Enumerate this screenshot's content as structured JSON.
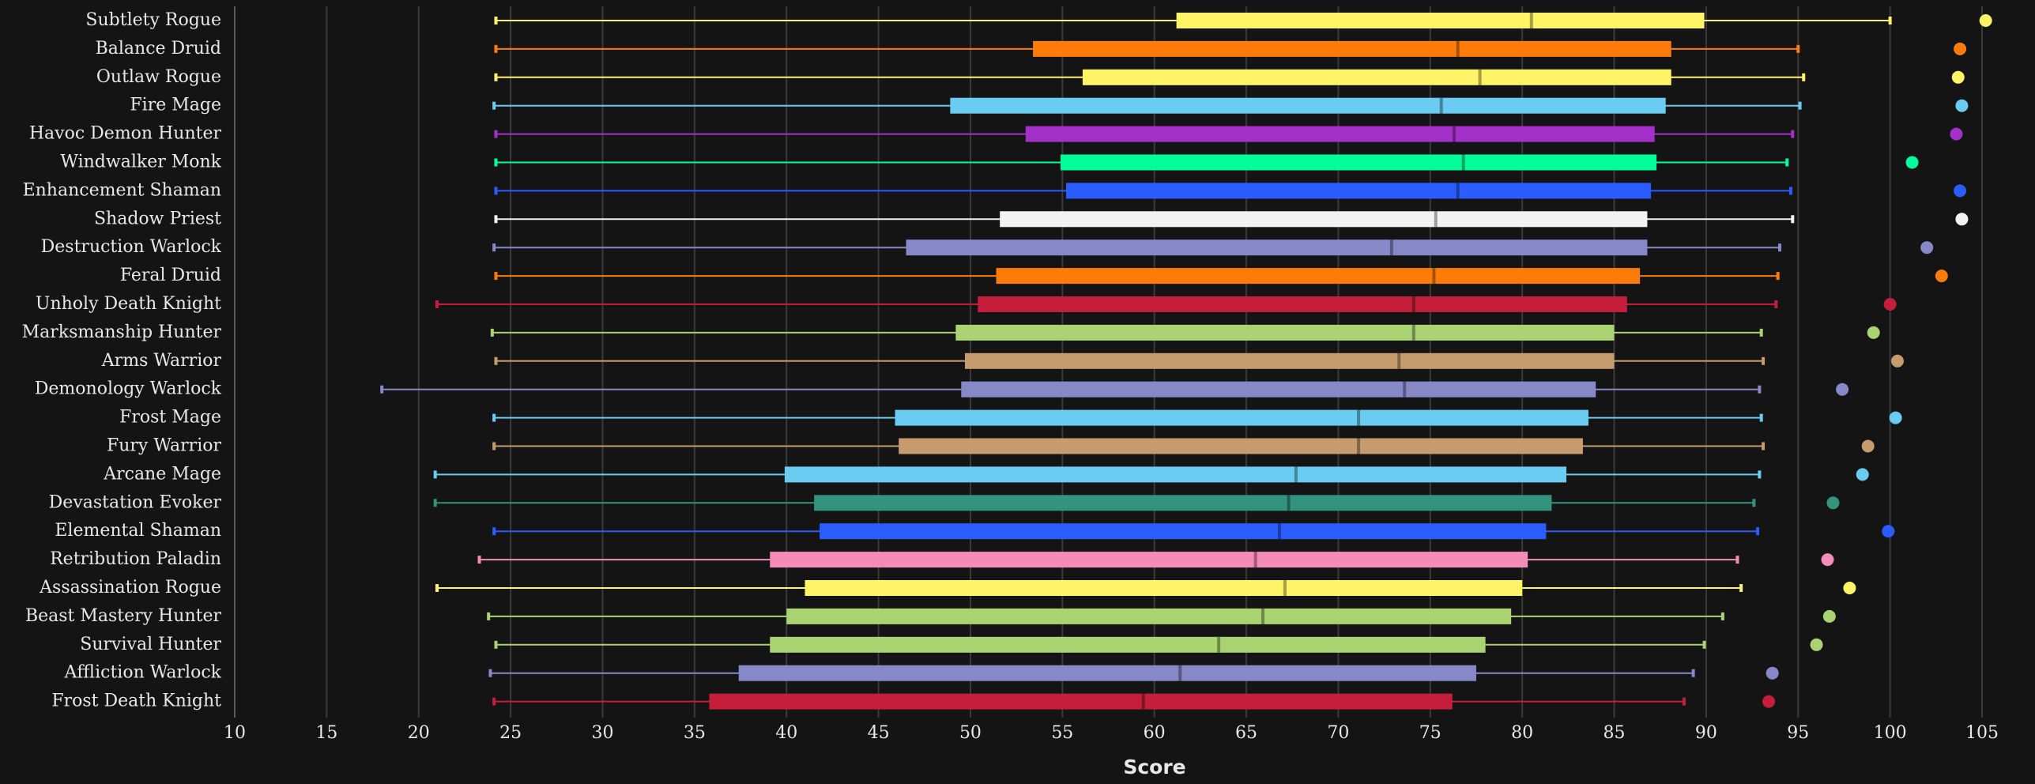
{
  "chart_data": {
    "type": "box",
    "x_label": "Score",
    "xlim": [
      10,
      105
    ],
    "xticks": [
      10,
      15,
      20,
      25,
      30,
      35,
      40,
      45,
      50,
      55,
      60,
      65,
      70,
      75,
      80,
      85,
      90,
      95,
      100,
      105
    ],
    "grid": true,
    "categories": [
      "Subtlety Rogue",
      "Balance Druid",
      "Outlaw Rogue",
      "Fire Mage",
      "Havoc Demon Hunter",
      "Windwalker Monk",
      "Enhancement Shaman",
      "Shadow Priest",
      "Destruction Warlock",
      "Feral Druid",
      "Unholy Death Knight",
      "Marksmanship Hunter",
      "Arms Warrior",
      "Demonology Warlock",
      "Frost Mage",
      "Fury Warrior",
      "Arcane Mage",
      "Devastation Evoker",
      "Elemental Shaman",
      "Retribution Paladin",
      "Assassination Rogue",
      "Beast Mastery Hunter",
      "Survival Hunter",
      "Affliction Warlock",
      "Frost Death Knight"
    ],
    "colors": [
      "#fff468",
      "#ff7c0a",
      "#fff468",
      "#69ccf0",
      "#a330c9",
      "#00ff98",
      "#2a5cff",
      "#f2f2f2",
      "#8788c8",
      "#ff7c0a",
      "#c41e3a",
      "#aad372",
      "#c69b6d",
      "#8788c8",
      "#69ccf0",
      "#c69b6d",
      "#69ccf0",
      "#33937f",
      "#2a5cff",
      "#f48cba",
      "#fff468",
      "#aad372",
      "#aad372",
      "#8788c8",
      "#c41e3a"
    ],
    "low": [
      24.2,
      24.2,
      24.2,
      24.1,
      24.2,
      24.2,
      24.2,
      24.2,
      24.1,
      24.2,
      21.0,
      24.0,
      24.2,
      18.0,
      24.1,
      24.1,
      20.9,
      20.9,
      24.1,
      23.3,
      21.0,
      23.8,
      24.2,
      23.9,
      24.1
    ],
    "q1": [
      61.2,
      53.4,
      56.1,
      48.9,
      53.0,
      54.9,
      55.2,
      51.6,
      46.5,
      51.4,
      50.4,
      49.2,
      49.7,
      49.5,
      45.9,
      46.1,
      39.9,
      41.5,
      41.8,
      39.1,
      41.0,
      40.0,
      39.1,
      37.4,
      35.8
    ],
    "median": [
      80.5,
      76.5,
      77.7,
      75.6,
      76.3,
      76.8,
      76.5,
      75.3,
      72.9,
      75.2,
      74.1,
      74.1,
      73.3,
      73.6,
      71.1,
      71.1,
      67.7,
      67.3,
      66.8,
      65.5,
      67.1,
      65.9,
      63.5,
      61.4,
      59.4
    ],
    "q3": [
      89.9,
      88.1,
      88.1,
      87.8,
      87.2,
      87.3,
      87.0,
      86.8,
      86.8,
      86.4,
      85.7,
      85.0,
      85.0,
      84.0,
      83.6,
      83.3,
      82.4,
      81.6,
      81.3,
      80.3,
      80.0,
      79.4,
      78.0,
      77.5,
      76.2
    ],
    "high": [
      100.0,
      95.0,
      95.3,
      95.1,
      94.7,
      94.4,
      94.6,
      94.7,
      94.0,
      93.9,
      93.8,
      93.0,
      93.1,
      92.9,
      93.0,
      93.1,
      92.9,
      92.6,
      92.8,
      91.7,
      91.9,
      90.9,
      89.9,
      89.3,
      88.8
    ],
    "max": [
      105.2,
      103.8,
      103.7,
      103.9,
      103.6,
      101.2,
      103.8,
      103.9,
      102.0,
      102.8,
      100.0,
      99.1,
      100.4,
      97.4,
      100.3,
      98.8,
      98.5,
      96.9,
      99.9,
      96.6,
      97.8,
      96.7,
      96.0,
      93.6,
      93.4
    ]
  }
}
